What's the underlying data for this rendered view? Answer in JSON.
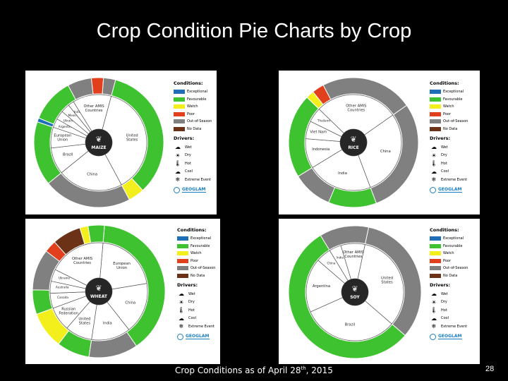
{
  "slide": {
    "title": "Crop Condition Pie Charts by Crop",
    "footer_main": "Crop Conditions as of April 28",
    "footer_sup": "th",
    "footer_end": ", 2015",
    "page_number": "28"
  },
  "legend": {
    "conditions_header": "Conditions:",
    "drivers_header": "Drivers:",
    "conditions": [
      {
        "label": "Exceptional",
        "color": "#1f6fb8"
      },
      {
        "label": "Favourable",
        "color": "#3ec22f"
      },
      {
        "label": "Watch",
        "color": "#f2ef1c"
      },
      {
        "label": "Poor",
        "color": "#e2401d"
      },
      {
        "label": "Out-of-Season",
        "color": "#808080"
      },
      {
        "label": "No Data",
        "color": "#6b3217"
      }
    ],
    "drivers": [
      {
        "label": "Wet",
        "icon": "rain-cloud-icon",
        "glyph": "☁"
      },
      {
        "label": "Dry",
        "icon": "dry-sun-icon",
        "glyph": "☀"
      },
      {
        "label": "Hot",
        "icon": "thermometer-icon",
        "glyph": "🌡"
      },
      {
        "label": "Cool",
        "icon": "cool-cloud-icon",
        "glyph": "☁"
      },
      {
        "label": "Extreme Event",
        "icon": "snowflake-icon",
        "glyph": "❄"
      }
    ],
    "logo_text": "GEOGLAM"
  },
  "panels": [
    {
      "id": "maize",
      "center_label": "MAIZE",
      "inner": [
        {
          "label": "United States",
          "value": 38
        },
        {
          "label": "China",
          "value": 22
        },
        {
          "label": "Brazil",
          "value": 9
        },
        {
          "label": "European Union",
          "value": 7
        },
        {
          "label": "Argentina",
          "value": 3
        },
        {
          "label": "Ukraine",
          "value": 3
        },
        {
          "label": "Mexico",
          "value": 3
        },
        {
          "label": "India",
          "value": 2
        },
        {
          "label": "Other AMIS Countries",
          "value": 13
        }
      ],
      "outer": [
        {
          "condition": "Favourable",
          "value": 34
        },
        {
          "condition": "Watch",
          "value": 4
        },
        {
          "condition": "Out-of-Season",
          "value": 22
        },
        {
          "condition": "Favourable",
          "value": 16
        },
        {
          "condition": "Exceptional",
          "value": 1
        },
        {
          "condition": "Favourable",
          "value": 11
        },
        {
          "condition": "Out-of-Season",
          "value": 6
        },
        {
          "condition": "Poor",
          "value": 3
        },
        {
          "condition": "Out-of-Season",
          "value": 3
        }
      ]
    },
    {
      "id": "rice",
      "center_label": "RICE",
      "inner": [
        {
          "label": "China",
          "value": 29
        },
        {
          "label": "India",
          "value": 22
        },
        {
          "label": "Indonesia",
          "value": 10
        },
        {
          "label": "Viet Nam",
          "value": 6
        },
        {
          "label": "Thailand",
          "value": 5
        },
        {
          "label": "Other AMIS Countries",
          "value": 28
        }
      ],
      "outer": [
        {
          "condition": "Out-of-Season",
          "value": 29
        },
        {
          "condition": "Favourable",
          "value": 12
        },
        {
          "condition": "Out-of-Season",
          "value": 10
        },
        {
          "condition": "Favourable",
          "value": 21
        },
        {
          "condition": "Watch",
          "value": 2
        },
        {
          "condition": "Poor",
          "value": 3
        },
        {
          "condition": "Out-of-Season",
          "value": 23
        }
      ]
    },
    {
      "id": "wheat",
      "center_label": "WHEAT",
      "inner": [
        {
          "label": "European Union",
          "value": 21
        },
        {
          "label": "China",
          "value": 17
        },
        {
          "label": "India",
          "value": 13
        },
        {
          "label": "United States",
          "value": 9
        },
        {
          "label": "Russian Federation",
          "value": 8
        },
        {
          "label": "Canada",
          "value": 5
        },
        {
          "label": "Australia",
          "value": 4
        },
        {
          "label": "Ukraine",
          "value": 4
        },
        {
          "label": "Other AMIS Countries",
          "value": 19
        }
      ],
      "outer": [
        {
          "condition": "Favourable",
          "value": 39
        },
        {
          "condition": "Out-of-Season",
          "value": 12
        },
        {
          "condition": "Favourable",
          "value": 8
        },
        {
          "condition": "Watch",
          "value": 9
        },
        {
          "condition": "Favourable",
          "value": 6
        },
        {
          "condition": "Out-of-Season",
          "value": 10
        },
        {
          "condition": "Poor",
          "value": 3
        },
        {
          "condition": "No Data",
          "value": 7
        },
        {
          "condition": "Watch",
          "value": 2
        },
        {
          "condition": "Favourable",
          "value": 4
        }
      ]
    },
    {
      "id": "soy",
      "center_label": "SOY",
      "inner": [
        {
          "label": "United States",
          "value": 33
        },
        {
          "label": "Brazil",
          "value": 32
        },
        {
          "label": "Argentina",
          "value": 18
        },
        {
          "label": "China",
          "value": 5
        },
        {
          "label": "India",
          "value": 4
        },
        {
          "label": "Other AMIS Countries",
          "value": 8
        }
      ],
      "outer": [
        {
          "condition": "Out-of-Season",
          "value": 33
        },
        {
          "condition": "Favourable",
          "value": 55
        },
        {
          "condition": "Out-of-Season",
          "value": 12
        }
      ]
    }
  ]
}
